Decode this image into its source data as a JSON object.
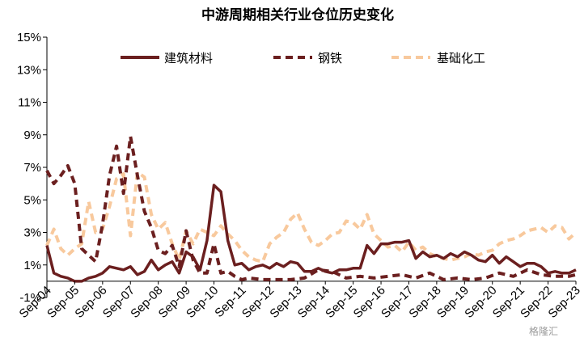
{
  "watermark": "格隆汇",
  "chart_data": {
    "type": "line",
    "title": "中游周期相关行业仓位历史变化",
    "xlabel": "",
    "ylabel": "",
    "ylim": [
      -1,
      15
    ],
    "yticks": [
      "-1%",
      "1%",
      "3%",
      "5%",
      "7%",
      "9%",
      "11%",
      "13%",
      "15%"
    ],
    "yticks_values": [
      -1,
      1,
      3,
      5,
      7,
      9,
      11,
      13,
      15
    ],
    "xticks": [
      "Sep-04",
      "Sep-05",
      "Sep-06",
      "Sep-07",
      "Sep-08",
      "Sep-09",
      "Sep-10",
      "Sep-11",
      "Sep-12",
      "Sep-13",
      "Sep-14",
      "Sep-15",
      "Sep-16",
      "Sep-17",
      "Sep-18",
      "Sep-19",
      "Sep-20",
      "Sep-21",
      "Sep-22",
      "Sep-23"
    ],
    "x_range": [
      2004.75,
      2023.75
    ],
    "legend_position": "top",
    "grid": false,
    "series": [
      {
        "name": "建筑材料",
        "color": "#6b1f1f",
        "dash": "solid",
        "x": [
          2004.75,
          2005.0,
          2005.25,
          2005.5,
          2005.75,
          2006.0,
          2006.25,
          2006.5,
          2006.75,
          2007.0,
          2007.25,
          2007.5,
          2007.75,
          2008.0,
          2008.25,
          2008.5,
          2008.75,
          2009.0,
          2009.25,
          2009.5,
          2009.75,
          2010.0,
          2010.25,
          2010.5,
          2010.75,
          2011.0,
          2011.25,
          2011.5,
          2011.75,
          2012.0,
          2012.25,
          2012.5,
          2012.75,
          2013.0,
          2013.25,
          2013.5,
          2013.75,
          2014.0,
          2014.25,
          2014.5,
          2014.75,
          2015.0,
          2015.25,
          2015.5,
          2015.75,
          2016.0,
          2016.25,
          2016.5,
          2016.75,
          2017.0,
          2017.25,
          2017.5,
          2017.75,
          2018.0,
          2018.25,
          2018.5,
          2018.75,
          2019.0,
          2019.25,
          2019.5,
          2019.75,
          2020.0,
          2020.25,
          2020.5,
          2020.75,
          2021.0,
          2021.25,
          2021.5,
          2021.75,
          2022.0,
          2022.25,
          2022.5,
          2022.75,
          2023.0,
          2023.25,
          2023.5,
          2023.75
        ],
        "values": [
          2.2,
          0.5,
          0.3,
          0.2,
          0.0,
          0.0,
          0.2,
          0.3,
          0.5,
          0.9,
          0.8,
          0.7,
          0.9,
          0.4,
          0.6,
          1.3,
          0.7,
          1.0,
          1.2,
          0.5,
          1.8,
          1.5,
          0.7,
          2.5,
          5.9,
          5.5,
          2.5,
          1.0,
          1.1,
          0.7,
          0.9,
          1.0,
          0.8,
          1.1,
          0.9,
          1.2,
          1.1,
          0.6,
          0.6,
          0.8,
          0.6,
          0.5,
          0.7,
          0.7,
          0.8,
          0.8,
          2.2,
          1.7,
          2.3,
          2.3,
          2.4,
          2.4,
          2.5,
          1.4,
          1.8,
          1.5,
          1.6,
          1.4,
          1.7,
          1.5,
          1.8,
          1.6,
          1.3,
          1.2,
          1.6,
          1.1,
          1.5,
          1.2,
          0.9,
          1.1,
          1.1,
          0.9,
          0.5,
          0.6,
          0.5,
          0.5,
          0.7
        ]
      },
      {
        "name": "钢铁",
        "color": "#6b1f1f",
        "dash": "dashed",
        "x": [
          2004.75,
          2005.0,
          2005.25,
          2005.5,
          2005.75,
          2006.0,
          2006.25,
          2006.5,
          2006.75,
          2007.0,
          2007.25,
          2007.5,
          2007.75,
          2008.0,
          2008.25,
          2008.5,
          2008.75,
          2009.0,
          2009.25,
          2009.5,
          2009.75,
          2010.0,
          2010.25,
          2010.5,
          2010.75,
          2011.0,
          2011.25,
          2011.5,
          2011.75,
          2012.0,
          2012.5,
          2013.0,
          2013.5,
          2014.0,
          2014.5,
          2015.0,
          2015.5,
          2016.0,
          2016.5,
          2017.0,
          2017.5,
          2018.0,
          2018.5,
          2019.0,
          2019.5,
          2020.0,
          2020.5,
          2021.0,
          2021.5,
          2022.0,
          2022.5,
          2023.0,
          2023.5,
          2023.75
        ],
        "values": [
          6.8,
          6.0,
          6.5,
          7.1,
          6.0,
          2.0,
          1.6,
          1.2,
          3.5,
          6.5,
          8.3,
          5.4,
          8.9,
          6.5,
          4.3,
          3.3,
          1.9,
          1.7,
          2.2,
          0.9,
          3.1,
          1.3,
          0.5,
          0.5,
          2.3,
          0.5,
          0.6,
          0.3,
          0.1,
          0.2,
          0.1,
          0.1,
          0.1,
          0.2,
          0.7,
          0.6,
          0.2,
          0.3,
          0.2,
          0.3,
          0.4,
          0.2,
          0.5,
          0.1,
          0.2,
          0.1,
          0.2,
          0.5,
          0.3,
          0.7,
          0.4,
          0.3,
          0.3,
          0.4
        ]
      },
      {
        "name": "基础化工",
        "color": "#f8c99d",
        "dash": "dashed",
        "x": [
          2004.75,
          2005.0,
          2005.25,
          2005.5,
          2005.75,
          2006.0,
          2006.25,
          2006.5,
          2006.75,
          2007.0,
          2007.25,
          2007.5,
          2007.75,
          2008.0,
          2008.25,
          2008.5,
          2008.75,
          2009.0,
          2009.25,
          2009.5,
          2009.75,
          2010.0,
          2010.25,
          2010.5,
          2010.75,
          2011.0,
          2011.25,
          2011.5,
          2011.75,
          2012.0,
          2012.25,
          2012.5,
          2012.75,
          2013.0,
          2013.25,
          2013.5,
          2013.75,
          2014.0,
          2014.25,
          2014.5,
          2014.75,
          2015.0,
          2015.25,
          2015.5,
          2015.75,
          2016.0,
          2016.25,
          2016.5,
          2016.75,
          2017.0,
          2017.25,
          2017.5,
          2017.75,
          2018.0,
          2018.25,
          2018.5,
          2018.75,
          2019.0,
          2019.25,
          2019.5,
          2019.75,
          2020.0,
          2020.25,
          2020.5,
          2020.75,
          2021.0,
          2021.25,
          2021.5,
          2021.75,
          2022.0,
          2022.25,
          2022.5,
          2022.75,
          2023.0,
          2023.25,
          2023.5,
          2023.75
        ],
        "values": [
          2.2,
          3.2,
          2.0,
          1.6,
          2.0,
          2.3,
          4.9,
          3.0,
          3.2,
          4.6,
          6.3,
          6.6,
          2.8,
          6.7,
          6.4,
          4.1,
          3.2,
          3.6,
          2.3,
          1.3,
          3.1,
          2.3,
          3.2,
          3.0,
          2.8,
          3.4,
          2.9,
          2.5,
          1.9,
          1.5,
          1.3,
          1.2,
          2.3,
          2.7,
          3.0,
          3.8,
          4.2,
          3.2,
          2.4,
          2.2,
          2.5,
          2.9,
          3.0,
          3.7,
          3.6,
          3.2,
          4.1,
          2.9,
          2.5,
          2.1,
          2.2,
          1.8,
          2.4,
          1.9,
          2.1,
          1.7,
          1.5,
          1.4,
          1.3,
          1.4,
          1.5,
          1.7,
          1.6,
          1.8,
          1.9,
          2.3,
          2.5,
          2.6,
          2.8,
          3.1,
          3.2,
          3.3,
          3.0,
          3.4,
          3.3,
          2.6,
          3.0
        ]
      }
    ]
  }
}
